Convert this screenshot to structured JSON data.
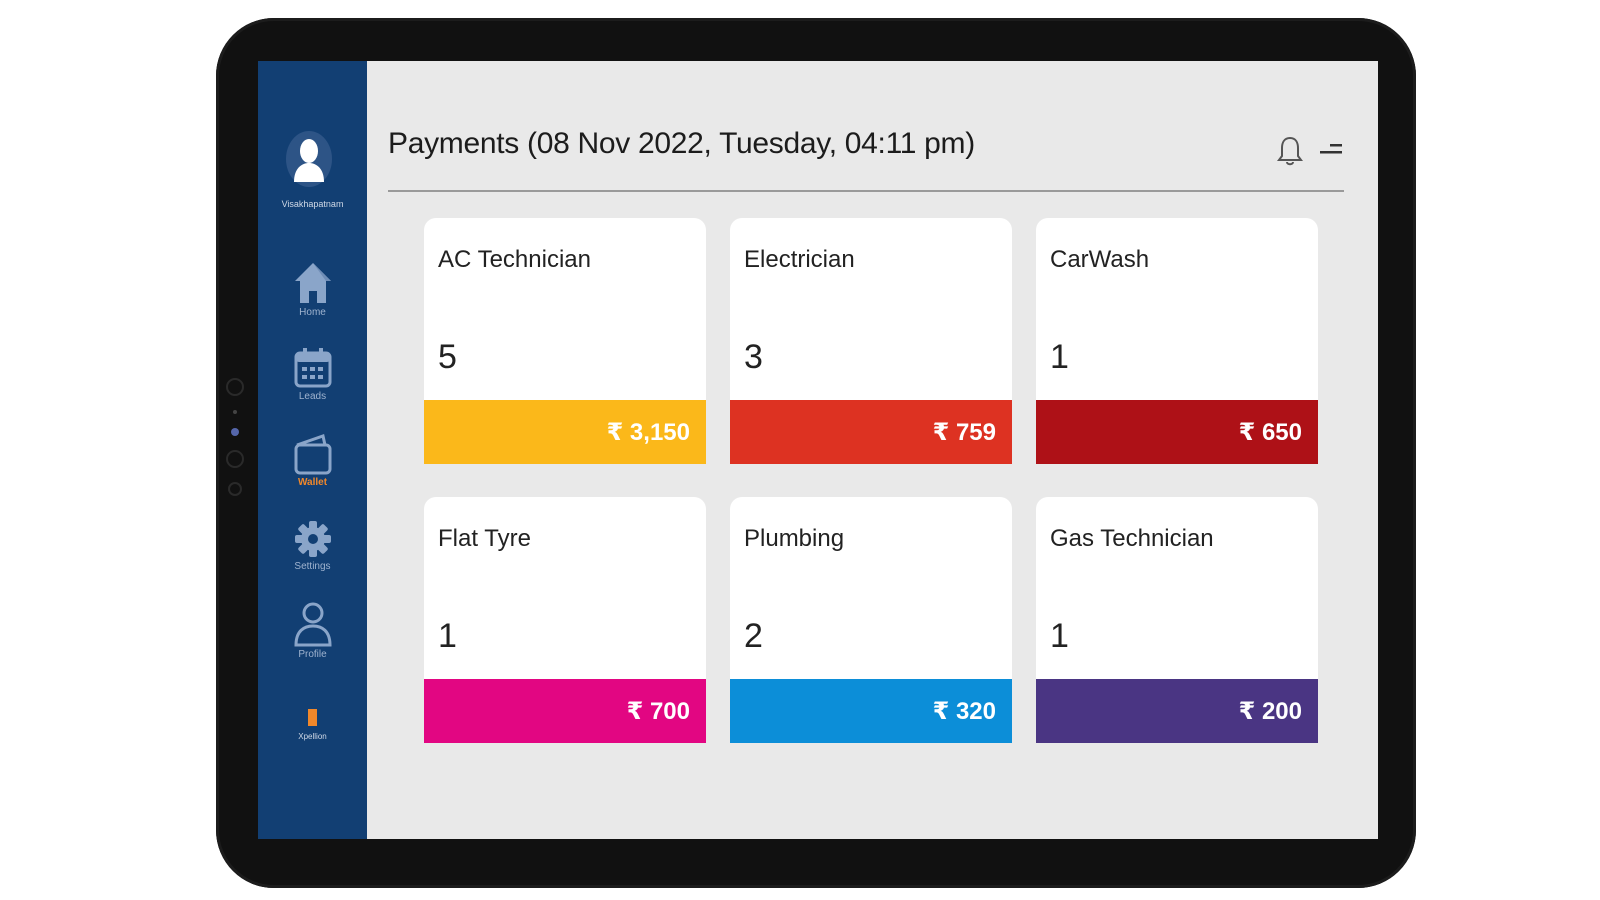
{
  "sidebar": {
    "user_name": "Visakhapatnam",
    "items": [
      {
        "label": "Home",
        "icon": "home-icon"
      },
      {
        "label": "Leads",
        "icon": "calendar-icon"
      },
      {
        "label": "Wallet",
        "icon": "wallet-icon",
        "active": true
      },
      {
        "label": "Settings",
        "icon": "gear-icon"
      },
      {
        "label": "Profile",
        "icon": "user-icon"
      }
    ],
    "footer_label": "Xpellion"
  },
  "header": {
    "title": "Payments (08 Nov 2022, Tuesday, 04:11 pm)"
  },
  "cards": [
    {
      "title": "AC Technician",
      "count": "5",
      "amount": "₹  3,150",
      "color": "#fbb81a"
    },
    {
      "title": "Electrician",
      "count": "3",
      "amount": "₹  759",
      "color": "#dd3222"
    },
    {
      "title": "CarWash",
      "count": "1",
      "amount": "₹  650",
      "color": "#ae1117"
    },
    {
      "title": "Flat Tyre",
      "count": "1",
      "amount": "₹  700",
      "color": "#e20682"
    },
    {
      "title": "Plumbing",
      "count": "2",
      "amount": "₹  320",
      "color": "#0c8ed8"
    },
    {
      "title": "Gas Technician",
      "count": "1",
      "amount": "₹  200",
      "color": "#4a3583"
    }
  ],
  "colors": {
    "sidebar": "#123f73",
    "accent": "#f0882b",
    "screen_bg": "#e9e9e9"
  }
}
